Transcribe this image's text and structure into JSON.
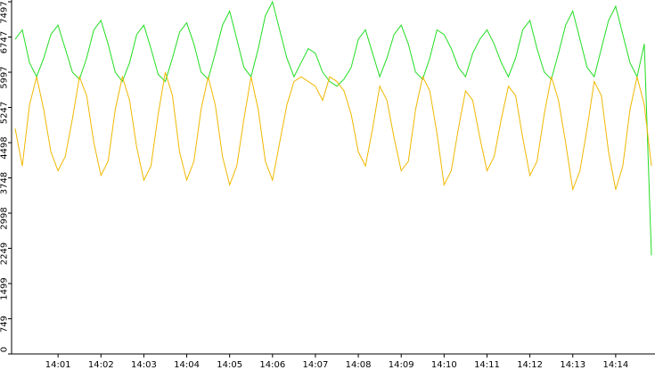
{
  "chart_data": {
    "type": "line",
    "categories": [
      null,
      null,
      null,
      null,
      null,
      null,
      "14:01",
      null,
      null,
      null,
      null,
      null,
      "14:02",
      null,
      null,
      null,
      null,
      null,
      "14:03",
      null,
      null,
      null,
      null,
      null,
      "14:04",
      null,
      null,
      null,
      null,
      null,
      "14:05",
      null,
      null,
      null,
      null,
      null,
      "14:06",
      null,
      null,
      null,
      null,
      null,
      "14:07",
      null,
      null,
      null,
      null,
      null,
      "14:08",
      null,
      null,
      null,
      null,
      null,
      "14:09",
      null,
      null,
      null,
      null,
      null,
      "14:10",
      null,
      null,
      null,
      null,
      null,
      "14:11",
      null,
      null,
      null,
      null,
      null,
      "14:12",
      null,
      null,
      null,
      null,
      null,
      "14:13",
      null,
      null,
      null,
      null,
      null,
      "14:14",
      null,
      null,
      null,
      null,
      null
    ],
    "series": [
      {
        "color": "#22dd22",
        "values": [
          6700,
          6900,
          6200,
          5900,
          6300,
          6800,
          7000,
          6500,
          6000,
          5850,
          6300,
          6900,
          7100,
          6600,
          6000,
          5800,
          6200,
          6800,
          7000,
          6500,
          5950,
          5800,
          6300,
          6850,
          7050,
          6600,
          6000,
          5850,
          6400,
          7000,
          7300,
          6700,
          6100,
          5900,
          6500,
          7200,
          7497,
          6900,
          6300,
          5900,
          6200,
          6500,
          6400,
          6000,
          5800,
          5700,
          5850,
          6100,
          6700,
          6900,
          6400,
          5900,
          6300,
          6800,
          7000,
          6600,
          6000,
          5850,
          6300,
          6900,
          6800,
          6500,
          6100,
          5900,
          6400,
          6700,
          6900,
          6600,
          6200,
          5900,
          6300,
          6900,
          7100,
          6500,
          6000,
          5850,
          6400,
          7000,
          7300,
          6700,
          6100,
          5900,
          6500,
          7100,
          7400,
          6800,
          6200,
          5900,
          6600,
          2100
        ]
      },
      {
        "color": "#f0b800",
        "values": [
          4800,
          4000,
          5300,
          5900,
          5200,
          4300,
          3900,
          4200,
          5000,
          5900,
          5500,
          4500,
          3800,
          4100,
          5200,
          5900,
          5400,
          4400,
          3700,
          4000,
          5100,
          6000,
          5500,
          4300,
          3700,
          4100,
          5200,
          5900,
          5300,
          4200,
          3600,
          4000,
          5000,
          5900,
          5200,
          4100,
          3700,
          4500,
          5300,
          5800,
          5900,
          5800,
          5700,
          5400,
          5900,
          5800,
          5600,
          5100,
          4300,
          4000,
          4800,
          5700,
          5400,
          4600,
          3900,
          4100,
          5200,
          5900,
          5600,
          4700,
          3600,
          3900,
          4800,
          5600,
          5400,
          4600,
          3900,
          4200,
          5000,
          5700,
          5500,
          4600,
          3800,
          4100,
          5100,
          5900,
          5400,
          4500,
          3500,
          3900,
          4800,
          5800,
          5500,
          4300,
          3500,
          4000,
          5200,
          5900,
          5300,
          4000
        ]
      }
    ],
    "ylim": [
      0,
      7497
    ],
    "yticks": [
      0,
      749,
      1499,
      2249,
      2998,
      3748,
      4498,
      5247,
      5997,
      6747,
      7497
    ]
  }
}
